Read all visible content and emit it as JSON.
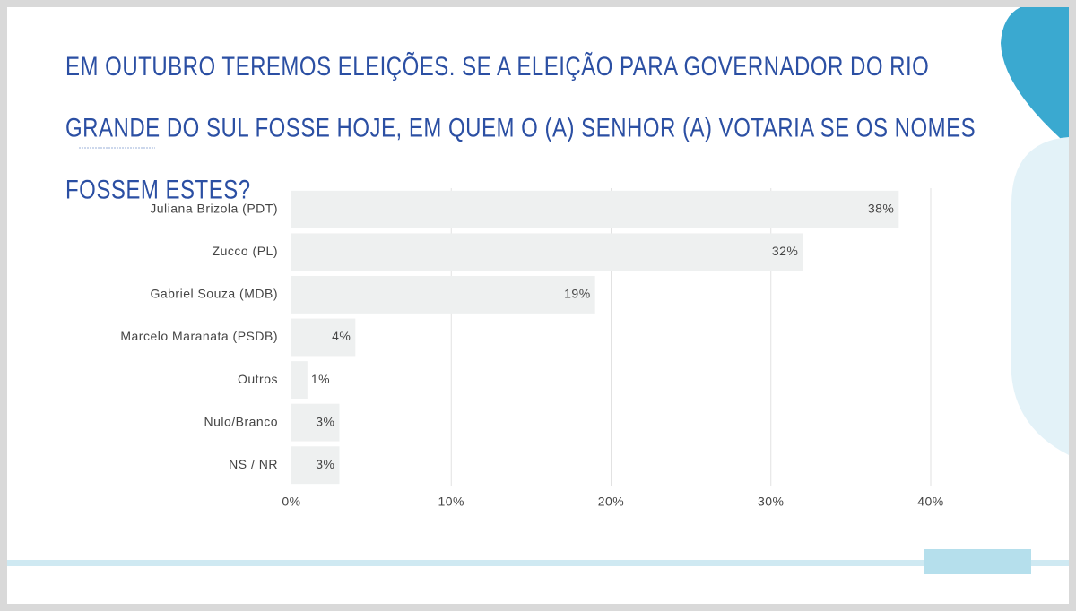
{
  "chart_data": {
    "type": "bar",
    "orientation": "horizontal",
    "title": "EM OUTUBRO TEREMOS ELEIÇÕES. SE A ELEIÇÃO PARA GOVERNADOR DO RIO GRANDE DO SUL FOSSE HOJE, EM QUEM O (A) SENHOR (A) VOTARIA SE OS NOMES FOSSEM ESTES?",
    "categories": [
      "Juliana Brizola (PDT)",
      "Zucco (PL)",
      "Gabriel Souza (MDB)",
      "Marcelo Maranata (PSDB)",
      "Outros",
      "Nulo/Branco",
      "NS / NR"
    ],
    "values": [
      38,
      32,
      19,
      4,
      1,
      3,
      3
    ],
    "value_labels": [
      "38%",
      "32%",
      "19%",
      "4%",
      "1%",
      "3%",
      "3%"
    ],
    "color": "#eef0f0",
    "xlim": [
      0,
      40
    ],
    "xticks": [
      {
        "value": 0,
        "label": "0%"
      },
      {
        "value": 10,
        "label": "10%"
      },
      {
        "value": 20,
        "label": "20%"
      },
      {
        "value": 30,
        "label": "30%"
      },
      {
        "value": 40,
        "label": "40%"
      }
    ],
    "grid": true
  }
}
